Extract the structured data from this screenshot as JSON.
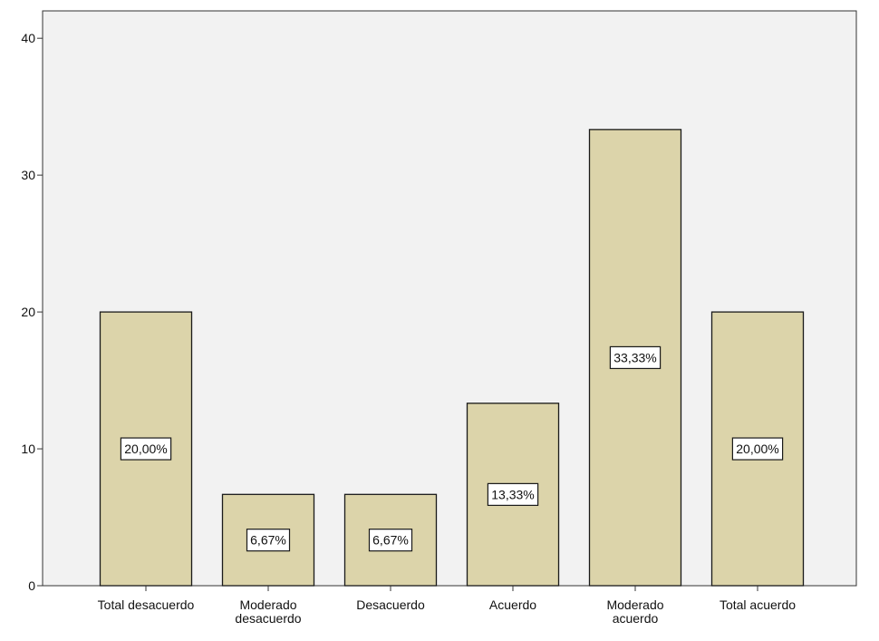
{
  "chart_data": {
    "type": "bar",
    "categories": [
      "Total desacuerdo",
      "Moderado desacuerdo",
      "Desacuerdo",
      "Acuerdo",
      "Moderado acuerdo",
      "Total acuerdo"
    ],
    "category_lines": [
      [
        "Total desacuerdo"
      ],
      [
        "Moderado",
        "desacuerdo"
      ],
      [
        "Desacuerdo"
      ],
      [
        "Acuerdo"
      ],
      [
        "Moderado",
        "acuerdo"
      ],
      [
        "Total acuerdo"
      ]
    ],
    "values": [
      20.0,
      6.67,
      6.67,
      13.33,
      33.33,
      20.0
    ],
    "data_labels": [
      "20,00%",
      "6,67%",
      "6,67%",
      "13,33%",
      "33,33%",
      "20,00%"
    ],
    "ylim": [
      0,
      42
    ],
    "yticks": [
      0,
      10,
      20,
      30,
      40
    ],
    "ytick_labels": [
      "0",
      "10",
      "20",
      "30",
      "40"
    ],
    "title": "",
    "xlabel": "",
    "ylabel": "",
    "grid": false,
    "colors": {
      "bar_fill": "#dcd4aa",
      "bar_stroke": "#1a1a1a",
      "plot_background": "#f2f2f2",
      "axis": "#333333",
      "text": "#111111",
      "label_box_fill": "#ffffff"
    }
  }
}
